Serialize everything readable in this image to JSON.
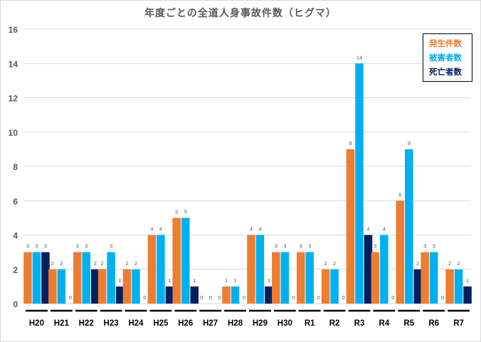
{
  "chart_data": {
    "type": "bar",
    "title": "年度ごとの全道人身事故件数（ヒグマ）",
    "xlabel": "",
    "ylabel": "",
    "ylim": [
      0,
      16
    ],
    "yticks": [
      0,
      2,
      4,
      6,
      8,
      10,
      12,
      14,
      16
    ],
    "grid": true,
    "legend_position": "top-right",
    "categories": [
      "H20",
      "H21",
      "H22",
      "H23",
      "H24",
      "H25",
      "H26",
      "H27",
      "H28",
      "H29",
      "H30",
      "R1",
      "R2",
      "R3",
      "R4",
      "R5",
      "R6",
      "R7"
    ],
    "series": [
      {
        "name": "発生件数",
        "color": "#ED7D31",
        "values": [
          3,
          2,
          3,
          2,
          2,
          4,
          5,
          0,
          1,
          4,
          3,
          3,
          2,
          9,
          3,
          6,
          3,
          2
        ]
      },
      {
        "name": "被害者数",
        "color": "#00B0F0",
        "values": [
          3,
          2,
          3,
          3,
          2,
          4,
          5,
          0,
          1,
          4,
          3,
          3,
          2,
          14,
          4,
          9,
          3,
          2
        ]
      },
      {
        "name": "死亡者数",
        "color": "#002060",
        "values": [
          3,
          0,
          2,
          1,
          0,
          1,
          1,
          0,
          0,
          1,
          0,
          0,
          0,
          4,
          0,
          2,
          0,
          1
        ]
      }
    ]
  }
}
